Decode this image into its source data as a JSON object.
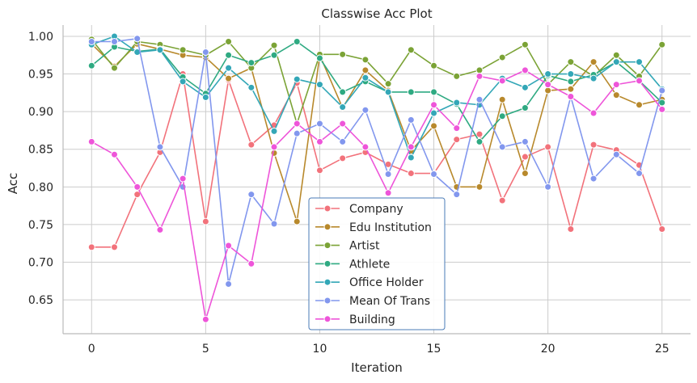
{
  "chart_data": {
    "type": "line",
    "title": "Classwise Acc Plot",
    "xlabel": "Iteration",
    "ylabel": "Acc",
    "xlim": [
      -1.25,
      26.25
    ],
    "ylim": [
      0.605,
      1.015
    ],
    "xticks": [
      0,
      5,
      10,
      15,
      20,
      25
    ],
    "yticks": [
      0.65,
      0.7,
      0.75,
      0.8,
      0.85,
      0.9,
      0.95,
      1.0
    ],
    "ytick_labels": [
      "0.65",
      "0.70",
      "0.75",
      "0.80",
      "0.85",
      "0.90",
      "0.95",
      "1.00"
    ],
    "grid": true,
    "legend_position": "lower-center",
    "x": [
      0,
      1,
      2,
      3,
      4,
      5,
      6,
      7,
      8,
      9,
      10,
      11,
      12,
      13,
      14,
      15,
      16,
      17,
      18,
      19,
      20,
      21,
      22,
      23,
      24,
      25
    ],
    "series": [
      {
        "name": "Company",
        "color": "#f2727b",
        "values": [
          0.72,
          0.72,
          0.79,
          0.846,
          0.95,
          0.754,
          0.942,
          0.856,
          0.882,
          0.938,
          0.822,
          0.838,
          0.846,
          0.83,
          0.818,
          0.818,
          0.863,
          0.87,
          0.782,
          0.84,
          0.853,
          0.744,
          0.856,
          0.849,
          0.829,
          0.744
        ]
      },
      {
        "name": "Edu Institution",
        "color": "#b8892c",
        "values": [
          0.99,
          0.96,
          0.99,
          0.983,
          0.975,
          0.972,
          0.944,
          0.958,
          0.845,
          0.754,
          0.975,
          0.905,
          0.955,
          0.928,
          0.848,
          0.881,
          0.8,
          0.8,
          0.916,
          0.818,
          0.928,
          0.93,
          0.966,
          0.922,
          0.909,
          0.916
        ]
      },
      {
        "name": "Artist",
        "color": "#7ba336",
        "values": [
          0.996,
          0.958,
          0.993,
          0.989,
          0.982,
          0.975,
          0.993,
          0.958,
          0.988,
          0.884,
          0.976,
          0.976,
          0.969,
          0.937,
          0.982,
          0.961,
          0.947,
          0.955,
          0.972,
          0.989,
          0.936,
          0.966,
          0.947,
          0.975,
          0.947,
          0.989
        ]
      },
      {
        "name": "Athlete",
        "color": "#2faa82",
        "values": [
          0.961,
          0.986,
          0.98,
          0.983,
          0.946,
          0.924,
          0.975,
          0.965,
          0.975,
          0.993,
          0.971,
          0.926,
          0.94,
          0.926,
          0.926,
          0.926,
          0.91,
          0.86,
          0.894,
          0.905,
          0.948,
          0.94,
          0.949,
          0.966,
          0.941,
          0.912
        ]
      },
      {
        "name": "Office Holder",
        "color": "#33a7b7",
        "values": [
          0.989,
          1.0,
          0.979,
          0.982,
          0.94,
          0.919,
          0.958,
          0.932,
          0.874,
          0.943,
          0.936,
          0.906,
          0.945,
          0.926,
          0.839,
          0.898,
          0.912,
          0.909,
          0.944,
          0.932,
          0.95,
          0.95,
          0.944,
          0.966,
          0.966,
          0.93
        ]
      },
      {
        "name": "Mean Of Trans",
        "color": "#8297ee",
        "values": [
          0.993,
          0.993,
          0.997,
          0.853,
          0.8,
          0.979,
          0.671,
          0.79,
          0.751,
          0.871,
          0.884,
          0.86,
          0.902,
          0.817,
          0.889,
          0.817,
          0.79,
          0.916,
          0.853,
          0.86,
          0.8,
          0.92,
          0.811,
          0.843,
          0.818,
          0.928
        ]
      },
      {
        "name": "Building",
        "color": "#ee55d9",
        "values": [
          0.86,
          0.843,
          0.8,
          0.743,
          0.811,
          0.624,
          0.722,
          0.698,
          0.853,
          0.884,
          0.86,
          0.884,
          0.853,
          0.792,
          0.853,
          0.909,
          0.878,
          0.947,
          0.941,
          0.955,
          0.936,
          0.92,
          0.898,
          0.936,
          0.941,
          0.903
        ]
      }
    ]
  }
}
